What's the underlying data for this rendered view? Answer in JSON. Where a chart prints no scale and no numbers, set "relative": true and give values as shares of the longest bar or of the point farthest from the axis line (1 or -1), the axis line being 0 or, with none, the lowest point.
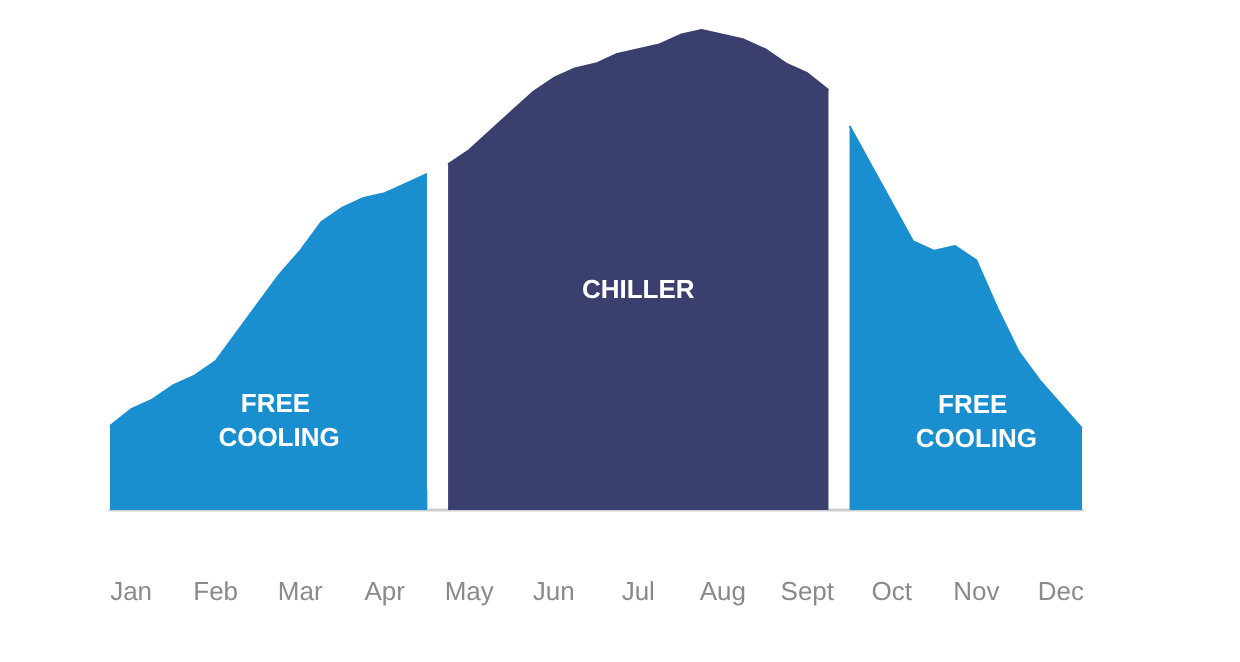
{
  "chart_data": {
    "type": "area",
    "relative": true,
    "grid": false,
    "marker": "none",
    "categories": [
      null,
      "Jan",
      null,
      null,
      null,
      "Feb",
      null,
      null,
      null,
      "Mar",
      null,
      null,
      null,
      "Apr",
      null,
      null,
      null,
      "May",
      null,
      null,
      null,
      "Jun",
      null,
      null,
      null,
      "Jul",
      null,
      null,
      null,
      "Aug",
      null,
      null,
      null,
      "Sept",
      null,
      null,
      null,
      "Oct",
      null,
      null,
      null,
      "Nov",
      null,
      null,
      null,
      "Dec",
      null
    ],
    "series": [
      {
        "color": "#1a8fd0",
        "values": [
          0.175,
          0.21,
          0.23,
          0.26,
          0.28,
          0.31,
          0.37,
          0.43,
          0.49,
          0.54,
          0.6,
          0.63,
          0.65,
          0.66,
          0.68,
          0.7,
          null,
          null,
          null,
          null,
          null,
          null,
          null,
          null,
          null,
          null,
          null,
          null,
          null,
          null,
          null,
          null,
          null,
          null,
          null,
          null,
          null,
          null,
          null,
          null,
          null,
          null,
          null,
          null,
          null,
          null,
          null
        ]
      },
      {
        "color": "#3b3f6e",
        "values": [
          null,
          null,
          null,
          null,
          null,
          null,
          null,
          null,
          null,
          null,
          null,
          null,
          null,
          null,
          null,
          null,
          0.72,
          0.75,
          0.79,
          0.83,
          0.87,
          0.9,
          0.92,
          0.93,
          0.95,
          0.96,
          0.97,
          0.99,
          1,
          0.99,
          0.98,
          0.96,
          0.93,
          0.91,
          0.875,
          null,
          null,
          null,
          null,
          null,
          null,
          null,
          null,
          null,
          null,
          null,
          null
        ]
      },
      {
        "color": "#1a8fd0",
        "values": [
          null,
          null,
          null,
          null,
          null,
          null,
          null,
          null,
          null,
          null,
          null,
          null,
          null,
          null,
          null,
          null,
          null,
          null,
          null,
          null,
          null,
          null,
          null,
          null,
          null,
          null,
          null,
          null,
          null,
          null,
          null,
          null,
          null,
          null,
          null,
          0.8,
          0.72,
          0.64,
          0.56,
          0.54,
          0.55,
          0.52,
          0.42,
          0.33,
          0.27,
          0.22,
          0.17
        ]
      }
    ],
    "annotations": [
      "FREE COOLING",
      "CHILLER",
      "FREE COOLING"
    ]
  }
}
